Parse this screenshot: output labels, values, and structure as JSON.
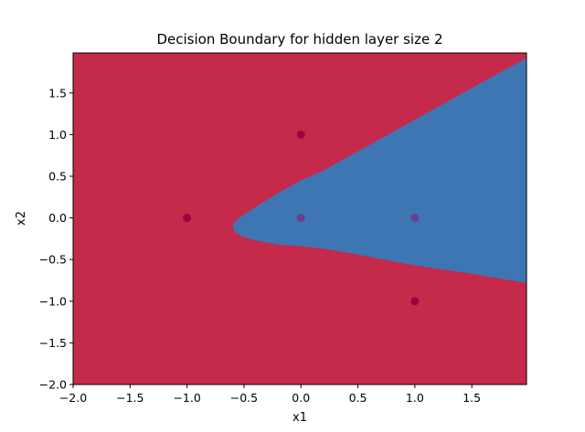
{
  "chart_data": {
    "type": "scatter",
    "title": "Decision Boundary for hidden layer size 2",
    "xlabel": "x1",
    "ylabel": "x2",
    "xlim": [
      -2.0,
      1.98
    ],
    "ylim": [
      -2.0,
      1.98
    ],
    "xticks": [
      -2.0,
      -1.5,
      -1.0,
      -0.5,
      0.0,
      0.5,
      1.0,
      1.5
    ],
    "xtick_labels": [
      "−2.0",
      "−1.5",
      "−1.0",
      "−0.5",
      "0.0",
      "0.5",
      "1.0",
      "1.5"
    ],
    "yticks": [
      -2.0,
      -1.5,
      -1.0,
      -0.5,
      0.0,
      0.5,
      1.0,
      1.5
    ],
    "ytick_labels": [
      "−2.0",
      "−1.5",
      "−1.0",
      "−0.5",
      "0.0",
      "0.5",
      "1.0",
      "1.5"
    ],
    "grid": false,
    "background_region": {
      "color": "#c52a4a"
    },
    "decision_region": {
      "color": "#3e76b3",
      "boundary_x": [
        1.98,
        1.5,
        1.0,
        0.5,
        0.2,
        0.0,
        -0.2,
        -0.4,
        -0.5,
        -0.58,
        -0.6,
        -0.58,
        -0.5,
        -0.4,
        -0.2,
        0.0,
        0.2,
        0.5,
        1.0,
        1.5,
        1.98
      ],
      "boundary_y": [
        1.92,
        1.56,
        1.18,
        0.8,
        0.57,
        0.45,
        0.3,
        0.13,
        0.04,
        -0.04,
        -0.1,
        -0.17,
        -0.23,
        -0.27,
        -0.32,
        -0.34,
        -0.37,
        -0.44,
        -0.57,
        -0.67,
        -0.78
      ]
    },
    "points": [
      {
        "x": 0.0,
        "y": 1.0,
        "color": "#9e0142"
      },
      {
        "x": -1.0,
        "y": 0.0,
        "color": "#9e0142"
      },
      {
        "x": 0.0,
        "y": 0.0,
        "color": "#6a3d8f"
      },
      {
        "x": 1.0,
        "y": 0.0,
        "color": "#6a3d8f"
      },
      {
        "x": 1.0,
        "y": -1.0,
        "color": "#9e0142"
      }
    ]
  }
}
